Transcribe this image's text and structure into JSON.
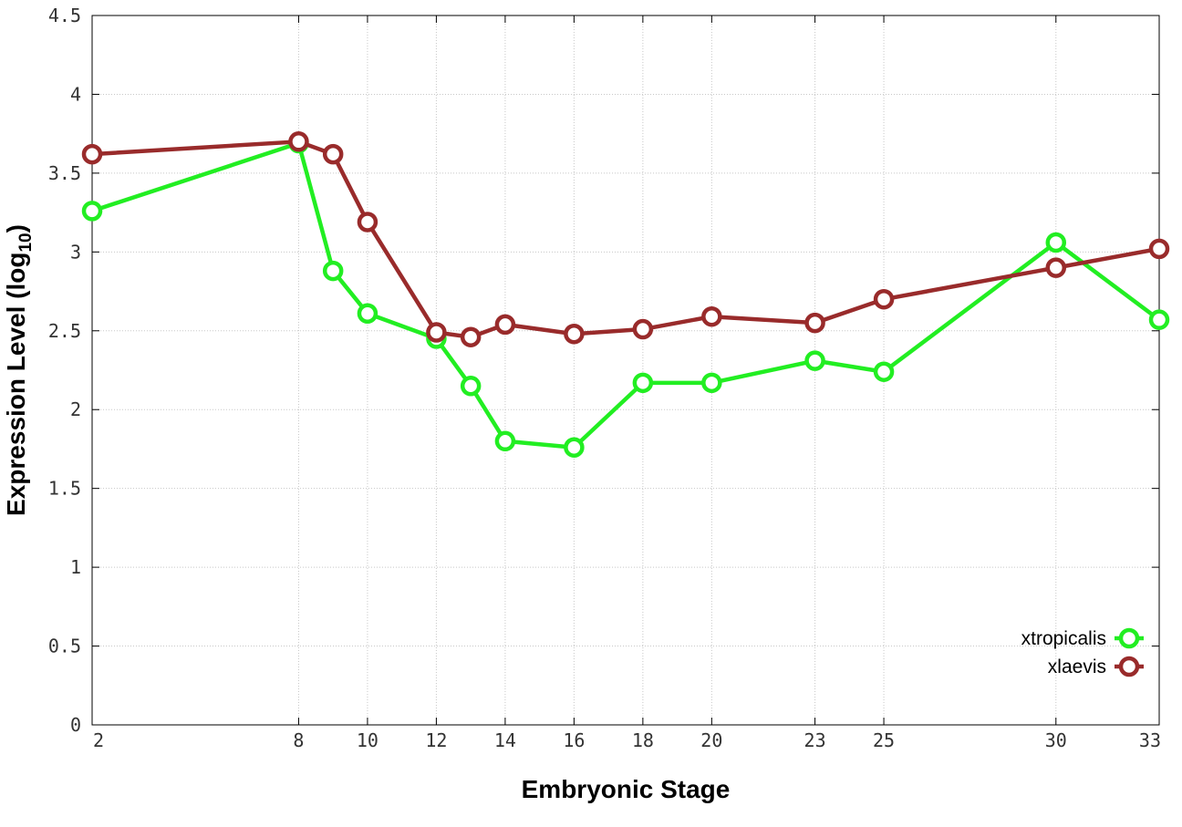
{
  "chart_data": {
    "type": "line",
    "xlabel": "Embryonic Stage",
    "ylabel_main": "Expression Level (log",
    "ylabel_sub": "10",
    "ylabel_close": ")",
    "xlim": [
      2,
      33
    ],
    "ylim": [
      0,
      4.5
    ],
    "x_ticks": [
      2,
      8,
      10,
      12,
      14,
      16,
      18,
      20,
      23,
      25,
      30,
      33
    ],
    "y_ticks": [
      0,
      0.5,
      1,
      1.5,
      2,
      2.5,
      3,
      3.5,
      4,
      4.5
    ],
    "y_tick_labels": [
      "0",
      "0.5",
      "1",
      "1.5",
      "2",
      "2.5",
      "3",
      "3.5",
      "4",
      "4.5"
    ],
    "x": [
      2,
      8,
      9,
      10,
      12,
      13,
      14,
      16,
      18,
      20,
      23,
      25,
      30,
      33
    ],
    "grid": true,
    "legend_position": "bottom-right",
    "series": [
      {
        "name": "xtropicalis",
        "color": "#22ee22",
        "values": [
          3.26,
          3.69,
          2.88,
          2.61,
          2.45,
          2.15,
          1.8,
          1.76,
          2.17,
          2.17,
          2.31,
          2.24,
          3.06,
          2.57
        ]
      },
      {
        "name": "xlaevis",
        "color": "#992b2b",
        "values": [
          3.62,
          3.7,
          3.62,
          3.19,
          2.49,
          2.46,
          2.54,
          2.48,
          2.51,
          2.59,
          2.55,
          2.7,
          2.9,
          3.02
        ]
      }
    ]
  }
}
